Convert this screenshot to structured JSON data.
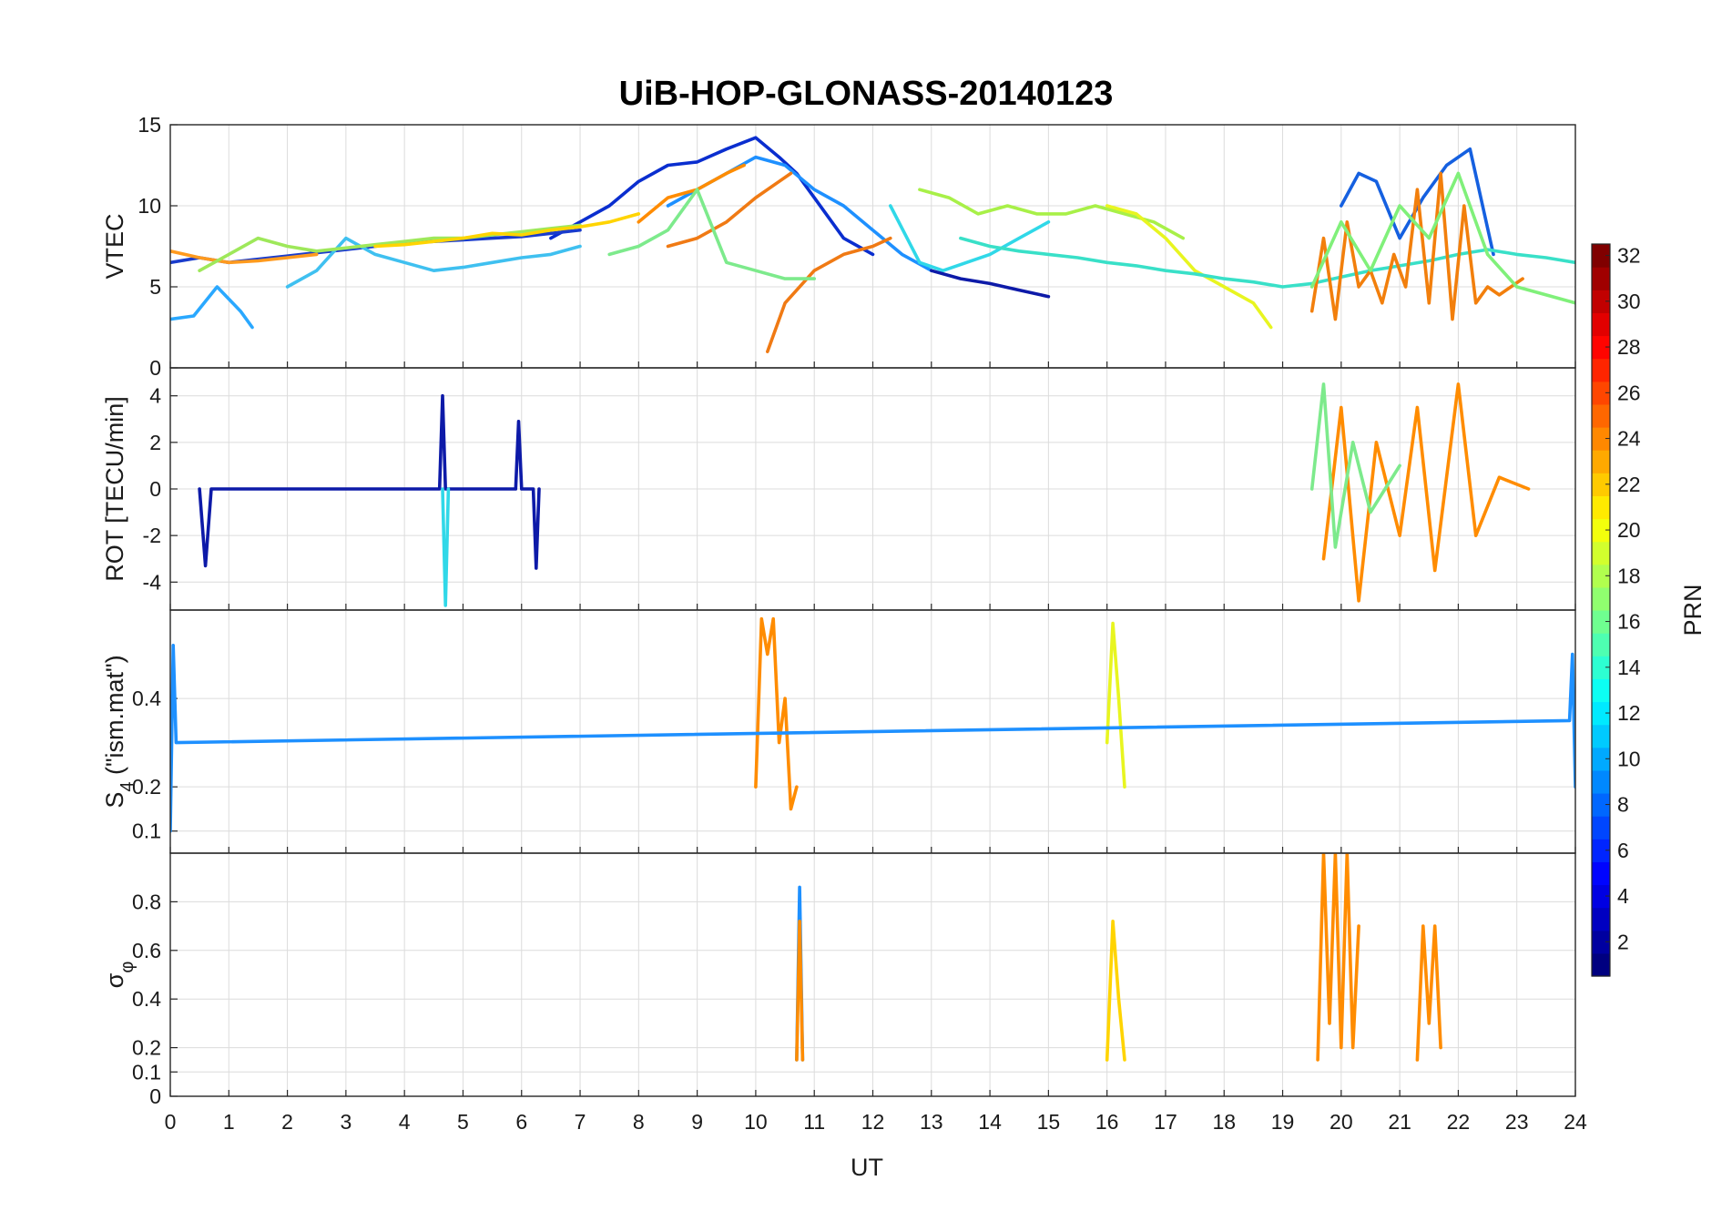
{
  "chart_data": {
    "title": "UiB-HOP-GLONASS-20140123",
    "type": "line",
    "xlabel": "UT",
    "xlim": [
      0,
      24
    ],
    "xticks": [
      0,
      1,
      2,
      3,
      4,
      5,
      6,
      7,
      8,
      9,
      10,
      11,
      12,
      13,
      14,
      15,
      16,
      17,
      18,
      19,
      20,
      21,
      22,
      23,
      24
    ],
    "grid": true,
    "panels": [
      {
        "ylabel": "VTEC",
        "ylim": [
          0,
          15
        ],
        "yticks": [
          0,
          5,
          10,
          15
        ],
        "series": [
          {
            "color": "#0a2ecf",
            "x": [
              6.5,
              7,
              7.5,
              8,
              8.5,
              9,
              9.5,
              10,
              10.4,
              10.7,
              11,
              11.5,
              12
            ],
            "y": [
              8,
              9,
              10,
              11.5,
              12.5,
              12.7,
              13.5,
              14.2,
              13,
              12,
              10.5,
              8,
              7
            ]
          },
          {
            "color": "#1e90ff",
            "x": [
              8.5,
              9,
              9.5,
              10,
              10.5,
              11,
              11.5,
              12,
              12.5,
              13
            ],
            "y": [
              10,
              11,
              12,
              13,
              12.5,
              11,
              10,
              8.5,
              7,
              6
            ]
          },
          {
            "color": "#ff8c00",
            "x": [
              8,
              8.5,
              9,
              9.5,
              9.8
            ],
            "y": [
              9,
              10.5,
              11,
              12,
              12.5
            ]
          },
          {
            "color": "#f07a14",
            "x": [
              8.5,
              9,
              9.5,
              10,
              10.4,
              10.6
            ],
            "y": [
              7.5,
              8,
              9,
              10.5,
              11.5,
              12
            ]
          },
          {
            "color": "#f07a14",
            "x": [
              10.2,
              10.5,
              11,
              11.5,
              12,
              12.3
            ],
            "y": [
              1,
              4,
              6,
              7,
              7.5,
              8
            ]
          },
          {
            "color": "#7dea8c",
            "x": [
              7.5,
              8,
              8.5,
              9,
              9.5,
              10,
              10.5,
              11
            ],
            "y": [
              7,
              7.5,
              8.5,
              11,
              6.5,
              6,
              5.5,
              5.5
            ]
          },
          {
            "color": "#30d8e8",
            "x": [
              12.3,
              12.8,
              13.2,
              13.6,
              14,
              14.5,
              15
            ],
            "y": [
              10,
              6.5,
              6,
              6.5,
              7,
              8,
              9
            ]
          },
          {
            "color": "#a8f048",
            "x": [
              12.8,
              13.3,
              13.8,
              14.3,
              14.8,
              15.3,
              15.8,
              16.3,
              16.8,
              17.3
            ],
            "y": [
              11,
              10.5,
              9.5,
              10,
              9.5,
              9.5,
              10,
              9.5,
              9,
              8
            ]
          },
          {
            "color": "#e8f520",
            "x": [
              16,
              16.5,
              17,
              17.5,
              18,
              18.5,
              18.8
            ],
            "y": [
              10,
              9.5,
              8,
              6,
              5,
              4,
              2.5
            ]
          },
          {
            "color": "#1560e0",
            "x": [
              20,
              20.3,
              20.6,
              21,
              21.4,
              21.8,
              22.2,
              22.6
            ],
            "y": [
              10,
              12,
              11.5,
              8,
              10.5,
              12.5,
              13.5,
              7
            ]
          },
          {
            "color": "#1a3ccc",
            "x": [
              0,
              0.5,
              1,
              1.5,
              2,
              2.5,
              3,
              3.5,
              4,
              4.5,
              5,
              5.5,
              6,
              6.5,
              7
            ],
            "y": [
              6.5,
              6.8,
              6.5,
              6.7,
              6.9,
              7.1,
              7.3,
              7.5,
              7.7,
              7.8,
              7.9,
              8,
              8.1,
              8.3,
              8.5
            ]
          },
          {
            "color": "#ff9a1e",
            "x": [
              0,
              0.5,
              1,
              1.5,
              2,
              2.5
            ],
            "y": [
              7.2,
              6.8,
              6.5,
              6.6,
              6.8,
              7
            ]
          },
          {
            "color": "#2aa8ff",
            "x": [
              0,
              0.4,
              0.8,
              1.2,
              1.4
            ],
            "y": [
              3,
              3.2,
              5,
              3.5,
              2.5
            ]
          },
          {
            "color": "#3fc0f0",
            "x": [
              2,
              2.5,
              3,
              3.5,
              4,
              4.5,
              5,
              5.5,
              6,
              6.5,
              7
            ],
            "y": [
              5,
              6,
              8,
              7,
              6.5,
              6,
              6.2,
              6.5,
              6.8,
              7,
              7.5
            ]
          },
          {
            "color": "#9ee85a",
            "x": [
              0.5,
              1,
              1.5,
              2,
              2.5,
              3,
              3.5,
              4,
              4.5,
              5,
              5.5,
              6,
              6.5,
              7
            ],
            "y": [
              6,
              7,
              8,
              7.5,
              7.2,
              7.4,
              7.6,
              7.8,
              8,
              8,
              8.2,
              8.4,
              8.6,
              8.8
            ]
          },
          {
            "color": "#ffd400",
            "x": [
              3.5,
              4,
              4.5,
              5,
              5.5,
              6,
              6.5,
              7,
              7.5,
              8
            ],
            "y": [
              7.5,
              7.6,
              7.8,
              8,
              8.3,
              8.2,
              8.5,
              8.7,
              9,
              9.5
            ]
          },
          {
            "color": "#39e0c8",
            "x": [
              13.5,
              14,
              14.5,
              15,
              15.5,
              16,
              16.5,
              17,
              17.5,
              18,
              18.5,
              19,
              19.5,
              20,
              20.5,
              21,
              21.5,
              22,
              22.5,
              23,
              23.5,
              24
            ],
            "y": [
              8,
              7.5,
              7.2,
              7,
              6.8,
              6.5,
              6.3,
              6,
              5.8,
              5.5,
              5.3,
              5,
              5.2,
              5.6,
              6,
              6.3,
              6.6,
              7,
              7.3,
              7,
              6.8,
              6.5
            ]
          },
          {
            "color": "#0d1aa8",
            "x": [
              13,
              13.5,
              14,
              14.5,
              15
            ],
            "y": [
              6,
              5.5,
              5.2,
              4.8,
              4.4
            ]
          },
          {
            "color": "#f27f0c",
            "x": [
              19.5,
              19.7,
              19.9,
              20.1,
              20.3,
              20.5,
              20.7,
              20.9,
              21.1,
              21.3,
              21.5,
              21.7,
              21.9,
              22.1,
              22.3,
              22.5,
              22.7,
              22.9,
              23.1
            ],
            "y": [
              3.5,
              8,
              3,
              9,
              5,
              6,
              4,
              7,
              5,
              11,
              4,
              12,
              3,
              10,
              4,
              5,
              4.5,
              5,
              5.5
            ]
          },
          {
            "color": "#80f07a",
            "x": [
              19.5,
              20,
              20.5,
              21,
              21.5,
              22,
              22.5,
              23,
              23.5,
              24
            ],
            "y": [
              5,
              9,
              6,
              10,
              8,
              12,
              7,
              5,
              4.5,
              4
            ]
          }
        ]
      },
      {
        "ylabel": "ROT [TECU/min]",
        "ylim": [
          -5.2,
          5.2
        ],
        "yticks": [
          -4,
          -2,
          0,
          2,
          4
        ],
        "series": [
          {
            "color": "#0d1aa8",
            "x": [
              0.5,
              0.6,
              0.7,
              4.6,
              4.65,
              4.7,
              5.9,
              5.95,
              6,
              6.2,
              6.25,
              6.3
            ],
            "y": [
              0,
              -3.3,
              0,
              0,
              4,
              0,
              0,
              2.9,
              0,
              0,
              -3.4,
              0
            ]
          },
          {
            "color": "#30d8e8",
            "x": [
              4.65,
              4.7,
              4.75
            ],
            "y": [
              0,
              -5,
              0
            ]
          },
          {
            "color": "#ff8c00",
            "x": [
              19.7,
              20,
              20.3,
              20.6,
              21,
              21.3,
              21.6,
              22,
              22.3,
              22.7,
              23.2
            ],
            "y": [
              -3,
              3.5,
              -4.8,
              2,
              -2,
              3.5,
              -3.5,
              4.5,
              -2,
              0.5,
              0
            ]
          },
          {
            "color": "#7dea8c",
            "x": [
              19.5,
              19.7,
              19.9,
              20.2,
              20.5,
              21
            ],
            "y": [
              0,
              4.5,
              -2.5,
              2,
              -1,
              1
            ]
          }
        ]
      },
      {
        "ylabel": "S4 (\"ism.mat\")",
        "ylabel_main": "S",
        "ylabel_sub": "4",
        "ylabel_rest": " (\"ism.mat\")",
        "ylim": [
          0.05,
          0.6
        ],
        "yticks": [
          0.1,
          0.2,
          0.4
        ],
        "series": [
          {
            "color": "#ff8c00",
            "x": [
              10,
              10.1,
              10.2,
              10.3,
              10.4,
              10.5,
              10.6,
              10.7
            ],
            "y": [
              0.2,
              0.58,
              0.5,
              0.58,
              0.3,
              0.4,
              0.15,
              0.2
            ]
          },
          {
            "color": "#e8f520",
            "x": [
              16,
              16.1,
              16.2,
              16.3
            ],
            "y": [
              0.3,
              0.57,
              0.4,
              0.2
            ]
          },
          {
            "color": "#1e90ff",
            "x": [
              0,
              0.05,
              0.1,
              23.9,
              23.95,
              24
            ],
            "y": [
              0.1,
              0.52,
              0.3,
              0.35,
              0.5,
              0.2
            ]
          }
        ]
      },
      {
        "ylabel": "σ φ",
        "ylabel_main": "σ",
        "ylabel_sub": "φ",
        "ylim": [
          0,
          1
        ],
        "yticks": [
          0,
          0.1,
          0.2,
          0.4,
          0.6,
          0.8
        ],
        "series": [
          {
            "color": "#1e90ff",
            "x": [
              10.7,
              10.75,
              10.8
            ],
            "y": [
              0.15,
              0.86,
              0.15
            ]
          },
          {
            "color": "#ff8c00",
            "x": [
              10.7,
              10.75,
              10.8
            ],
            "y": [
              0.15,
              0.72,
              0.15
            ]
          },
          {
            "color": "#ffd400",
            "x": [
              16,
              16.1,
              16.2,
              16.3
            ],
            "y": [
              0.15,
              0.72,
              0.4,
              0.15
            ]
          },
          {
            "color": "#ff8c00",
            "x": [
              19.6,
              19.7,
              19.8,
              19.9,
              20,
              20.1,
              20.2,
              20.3
            ],
            "y": [
              0.15,
              1,
              0.3,
              1,
              0.2,
              1,
              0.2,
              0.7
            ]
          },
          {
            "color": "#ff8c00",
            "x": [
              21.3,
              21.4,
              21.5,
              21.6,
              21.7
            ],
            "y": [
              0.15,
              0.7,
              0.3,
              0.7,
              0.2
            ]
          }
        ]
      }
    ],
    "colorbar": {
      "label": "PRN",
      "range": [
        1,
        32
      ],
      "ticks": [
        2,
        4,
        6,
        8,
        10,
        12,
        14,
        16,
        18,
        20,
        22,
        24,
        26,
        28,
        30,
        32
      ],
      "colormap": "jet"
    }
  }
}
